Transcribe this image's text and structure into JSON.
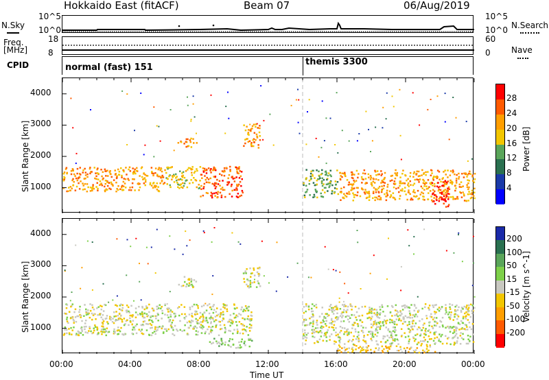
{
  "header": {
    "station": "Hokkaido East (fitACF)",
    "beam": "Beam 07",
    "date": "06/Aug/2019"
  },
  "top_panels": {
    "nsky_label": "N.Sky",
    "nsky_ticks": [
      "10^5",
      "10^0"
    ],
    "nsearch_label": "N.Search",
    "nsearch_ticks": [
      "10^5",
      "10^0"
    ],
    "freq_label_1": "Freq.",
    "freq_label_2": "[MHz]",
    "freq_ticks": [
      "18",
      "8"
    ],
    "nave_label": "Nave",
    "nave_ticks": [
      "60",
      "0"
    ],
    "cpid_label": "CPID",
    "cpid_modes": [
      {
        "name": "normal (fast) 151",
        "start_hour": 0
      },
      {
        "name": "themis 3300",
        "start_hour": 14
      }
    ]
  },
  "chart_data": [
    {
      "type": "heatmap",
      "title": "Power",
      "xlabel": "",
      "ylabel": "Slant Range [km]",
      "xlim": [
        0,
        24
      ],
      "ylim": [
        180,
        4500
      ],
      "yticks": [
        1000,
        2000,
        3000,
        4000
      ],
      "colorbar_label": "Power [dB]",
      "colorbar_ticks": [
        "28",
        "24",
        "20",
        "16",
        "12",
        "8",
        "4"
      ],
      "colors": [
        "#ff0000",
        "#ff5a00",
        "#ff9e00",
        "#f2c600",
        "#5aa55a",
        "#2a7050",
        "#1a3aa8",
        "#0000ff"
      ],
      "regions": [
        {
          "x0": 0,
          "x1": 6,
          "y0": 900,
          "y1": 1700,
          "level": 2
        },
        {
          "x0": 6,
          "x1": 8,
          "y0": 1000,
          "y1": 1700,
          "level": 3
        },
        {
          "x0": 8,
          "x1": 10.5,
          "y0": 700,
          "y1": 1700,
          "level": 1
        },
        {
          "x0": 6.7,
          "x1": 7.8,
          "y0": 2300,
          "y1": 2600,
          "level": 2
        },
        {
          "x0": 10.5,
          "x1": 11.5,
          "y0": 2300,
          "y1": 3100,
          "level": 2
        },
        {
          "x0": 14,
          "x1": 16,
          "y0": 700,
          "y1": 1600,
          "level": 4
        },
        {
          "x0": 16,
          "x1": 24,
          "y0": 600,
          "y1": 1600,
          "level": 2
        },
        {
          "x0": 21.5,
          "x1": 22.5,
          "y0": 400,
          "y1": 1300,
          "level": 0
        }
      ]
    },
    {
      "type": "heatmap",
      "title": "Velocity",
      "xlabel": "Time UT",
      "ylabel": "Slant Range [km]",
      "xlim": [
        0,
        24
      ],
      "ylim": [
        180,
        4500
      ],
      "yticks": [
        1000,
        2000,
        3000,
        4000
      ],
      "xticks": [
        "00:00",
        "04:00",
        "08:00",
        "12:00",
        "16:00",
        "20:00",
        "00:00"
      ],
      "colorbar_label": "Velocity [m s^-1]",
      "colorbar_ticks": [
        "200",
        "100",
        "50",
        "15",
        "-15",
        "-50",
        "-100",
        "-200"
      ],
      "colors": [
        "#1a2aa8",
        "#2a7050",
        "#5aa55a",
        "#7ed04a",
        "#c8c8c0",
        "#f2c600",
        "#ff9e00",
        "#ff5a00",
        "#ff0000"
      ],
      "regions": [
        {
          "x0": 0,
          "x1": 11,
          "y0": 800,
          "y1": 1800,
          "level": 4
        },
        {
          "x0": 6.7,
          "x1": 7.8,
          "y0": 2300,
          "y1": 2700,
          "level": 4
        },
        {
          "x0": 10.5,
          "x1": 11.5,
          "y0": 2300,
          "y1": 3000,
          "level": 4
        },
        {
          "x0": 8.5,
          "x1": 11,
          "y0": 400,
          "y1": 700,
          "level": 3
        },
        {
          "x0": 14,
          "x1": 24,
          "y0": 500,
          "y1": 1800,
          "level": 4
        },
        {
          "x0": 16,
          "x1": 22,
          "y0": 250,
          "y1": 500,
          "level": 5
        }
      ]
    }
  ]
}
